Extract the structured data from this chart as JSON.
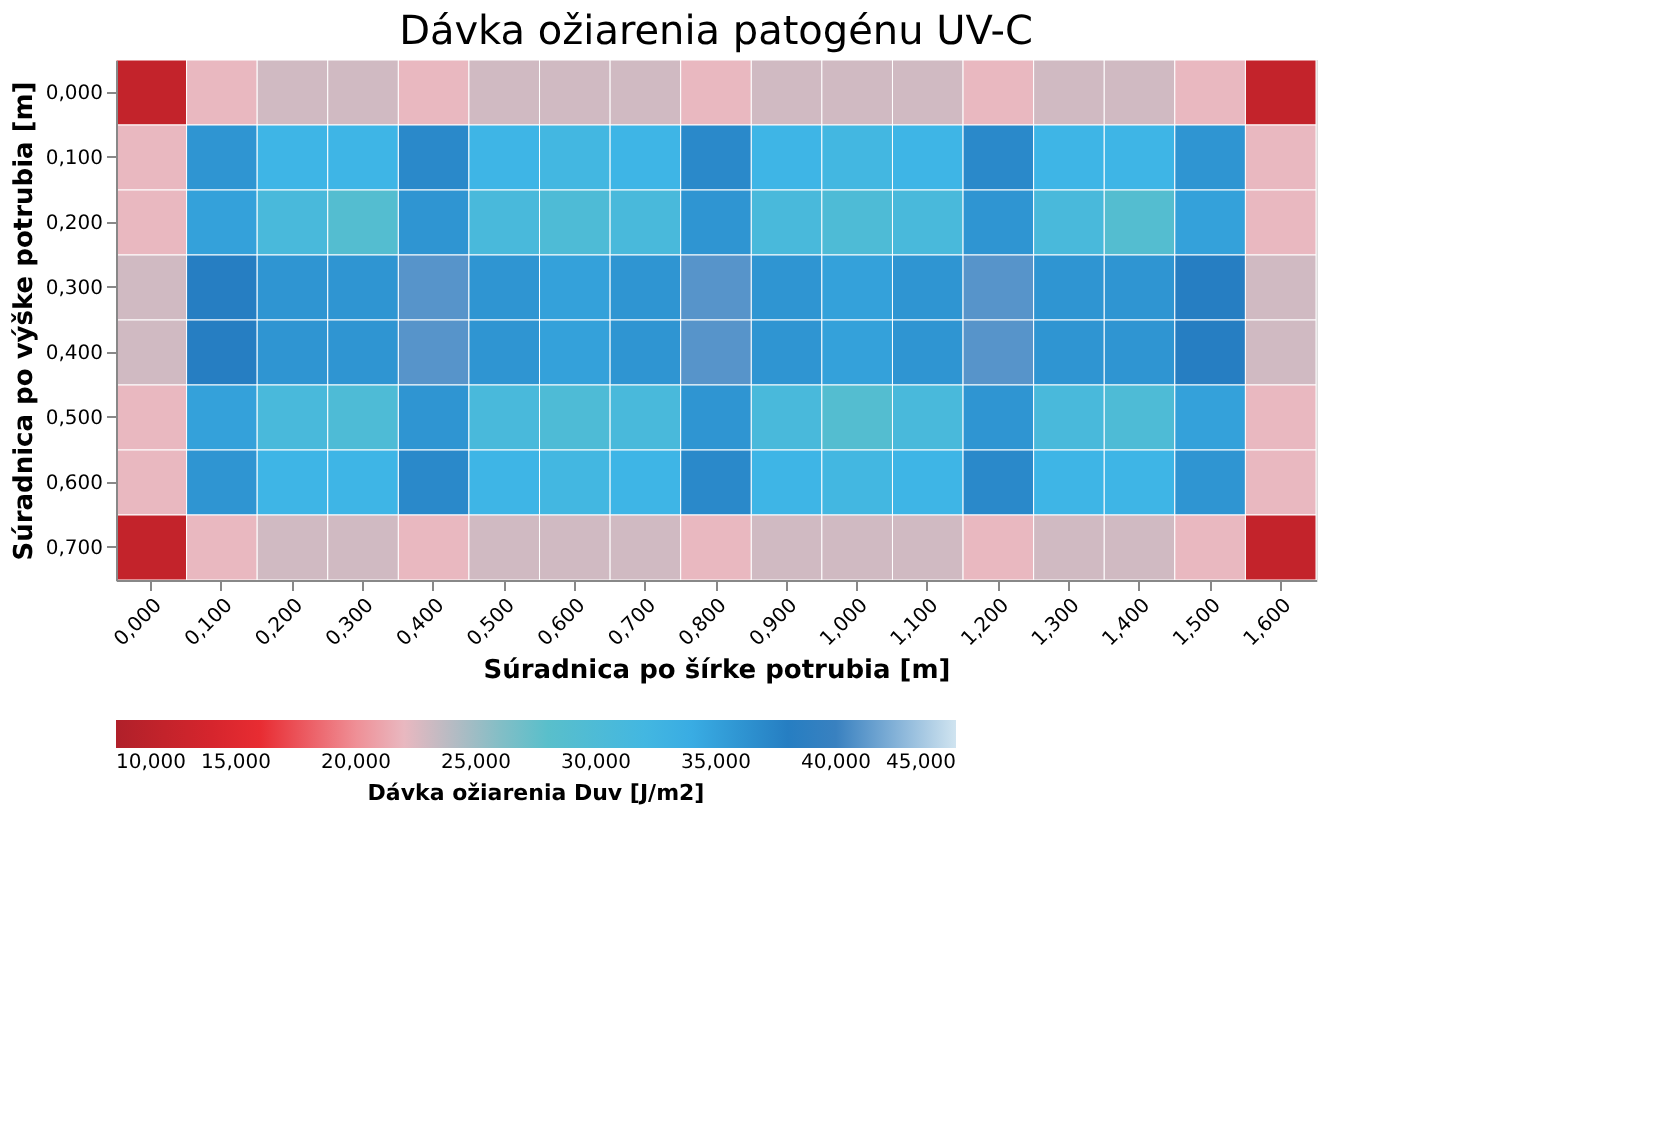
{
  "chart_data": {
    "type": "heatmap",
    "title": "Dávka ožiarenia patogénu UV-C",
    "xlabel": "Súradnica po šírke potrubia [m]",
    "ylabel": "Súradnica po výške potrubia [m]",
    "clabel": "Dávka ožiarenia Duv [J/m2]",
    "categories": [
      "0,000",
      "0,100",
      "0,200",
      "0,300",
      "0,400",
      "0,500",
      "0,600",
      "0,700",
      "0,800",
      "0,900",
      "1,000",
      "1,100",
      "1,200",
      "1,300",
      "1,400",
      "1,500",
      "1,600"
    ],
    "y_categories": [
      "0,000",
      "0,100",
      "0,200",
      "0,300",
      "0,400",
      "0,500",
      "0,600",
      "0,700"
    ],
    "cells": [
      [
        12,
        22,
        23,
        23,
        22,
        23,
        23,
        23,
        22,
        23,
        23,
        23,
        22,
        23,
        23,
        22,
        12
      ],
      [
        22,
        36,
        33,
        33,
        37,
        33,
        32,
        33,
        37,
        33,
        32,
        33,
        37,
        33,
        33,
        36,
        22
      ],
      [
        22,
        35,
        31,
        29,
        36,
        31,
        30,
        31,
        36,
        31,
        30,
        31,
        36,
        31,
        29,
        35,
        22
      ],
      [
        23,
        38,
        36,
        36,
        41,
        36,
        35,
        36,
        41,
        36,
        35,
        36,
        41,
        36,
        36,
        38,
        23
      ],
      [
        23,
        38,
        36,
        36,
        41,
        36,
        35,
        36,
        41,
        36,
        35,
        36,
        41,
        36,
        36,
        38,
        23
      ],
      [
        22,
        35,
        31,
        30,
        36,
        31,
        30,
        31,
        36,
        31,
        29,
        31,
        36,
        31,
        30,
        35,
        22
      ],
      [
        22,
        36,
        33,
        33,
        37,
        33,
        32,
        33,
        37,
        33,
        32,
        33,
        37,
        33,
        33,
        36,
        22
      ],
      [
        12,
        22,
        23,
        23,
        22,
        23,
        23,
        23,
        22,
        23,
        23,
        23,
        22,
        23,
        23,
        22,
        12
      ]
    ],
    "clim": [
      10,
      45
    ],
    "cticks": [
      {
        "value": 10,
        "label": "10,000"
      },
      {
        "value": 15,
        "label": "15,000"
      },
      {
        "value": 20,
        "label": "20,000"
      },
      {
        "value": 25,
        "label": "25,000"
      },
      {
        "value": 30,
        "label": "30,000"
      },
      {
        "value": 35,
        "label": "35,000"
      },
      {
        "value": 40,
        "label": "40,000"
      },
      {
        "value": 45,
        "label": "45,000"
      }
    ],
    "colors": [
      "#b0202a",
      "#e8282e",
      "#f2b8c0",
      "#5cc0c8",
      "#3cb4e8",
      "#2070b8",
      "#d0e4f0"
    ]
  }
}
